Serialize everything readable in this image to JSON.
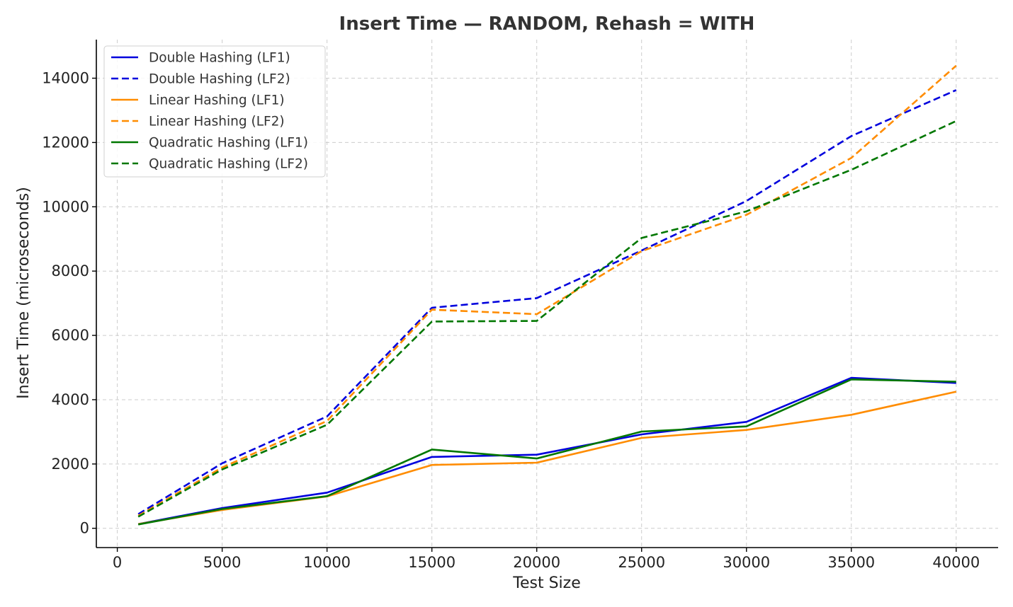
{
  "chart_data": {
    "type": "line",
    "title": "Insert Time — RANDOM, Rehash = WITH",
    "xlabel": "Test Size",
    "ylabel": "Insert Time (microseconds)",
    "xlim": [
      -1000,
      42000
    ],
    "ylim": [
      -600,
      15200
    ],
    "xticks": [
      0,
      5000,
      10000,
      15000,
      20000,
      25000,
      30000,
      35000,
      40000
    ],
    "yticks": [
      0,
      2000,
      4000,
      6000,
      8000,
      10000,
      12000,
      14000
    ],
    "grid": true,
    "legend_position": "top-left",
    "x": [
      1000,
      5000,
      10000,
      15000,
      20000,
      25000,
      30000,
      35000,
      40000
    ],
    "series": [
      {
        "name": "Double Hashing (LF1)",
        "color": "#0000dd",
        "style": "solid",
        "values": [
          130,
          630,
          1110,
          2220,
          2290,
          2920,
          3310,
          4680,
          4520
        ]
      },
      {
        "name": "Double Hashing (LF2)",
        "color": "#0000dd",
        "style": "dashed",
        "values": [
          440,
          2020,
          3480,
          6860,
          7160,
          8640,
          10180,
          12200,
          13630
        ]
      },
      {
        "name": "Linear Hashing (LF1)",
        "color": "#ff8c00",
        "style": "solid",
        "values": [
          130,
          570,
          990,
          1970,
          2040,
          2810,
          3060,
          3530,
          4250
        ]
      },
      {
        "name": "Linear Hashing (LF2)",
        "color": "#ff8c00",
        "style": "dashed",
        "values": [
          390,
          1890,
          3340,
          6800,
          6660,
          8620,
          9750,
          11520,
          14390
        ]
      },
      {
        "name": "Quadratic Hashing (LF1)",
        "color": "#007700",
        "style": "solid",
        "values": [
          120,
          600,
          1000,
          2450,
          2170,
          3010,
          3170,
          4630,
          4560
        ]
      },
      {
        "name": "Quadratic Hashing (LF2)",
        "color": "#007700",
        "style": "dashed",
        "values": [
          360,
          1830,
          3220,
          6430,
          6450,
          9030,
          9860,
          11150,
          12670
        ]
      }
    ]
  }
}
